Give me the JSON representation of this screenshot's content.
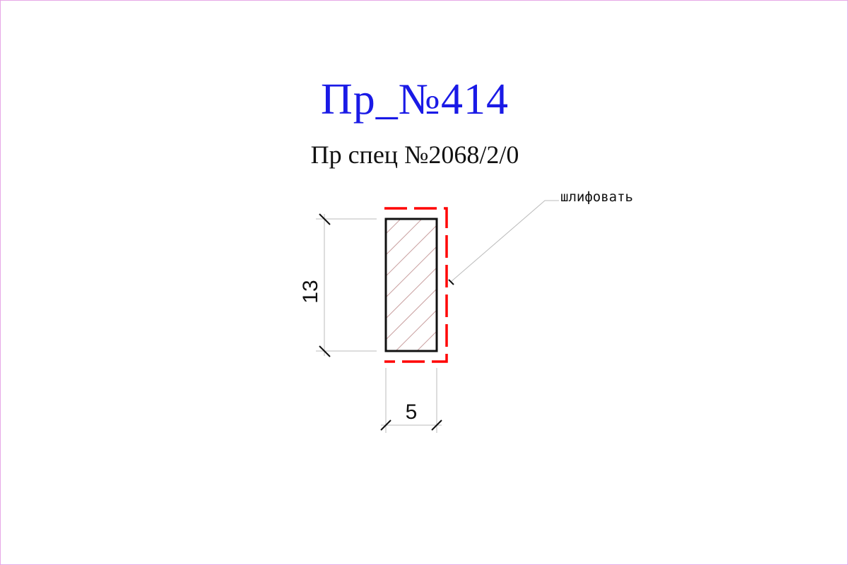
{
  "drawing": {
    "title": "Пр_№414",
    "subtitle": "Пр спец №2068/2/0",
    "dimensions": {
      "height_label": "13",
      "width_label": "5"
    },
    "annotation": {
      "note": "шлифовать"
    },
    "colors": {
      "title": "#1a1ae6",
      "outline": "#111111",
      "grind_marker": "#ff0000",
      "hatch": "#c9a0a0",
      "border": "#e6a8e6"
    }
  }
}
